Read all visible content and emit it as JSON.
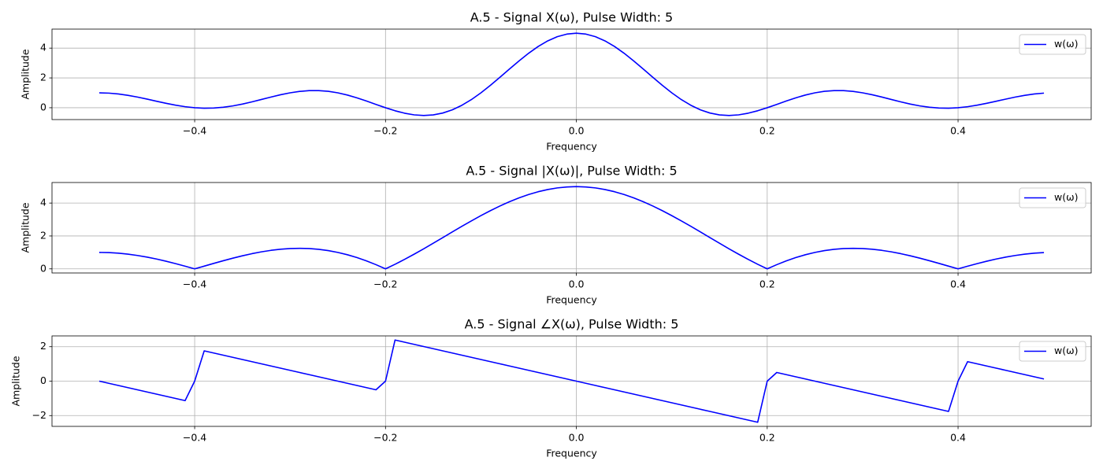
{
  "chart_data": [
    {
      "type": "line",
      "title": "A.5 - Signal X(ω), Pulse Width: 5",
      "xlabel": "Frequency",
      "ylabel": "Amplitude",
      "x": [
        -0.5,
        -0.49,
        -0.48,
        -0.47,
        -0.46,
        -0.45,
        -0.44,
        -0.43,
        -0.42,
        -0.41,
        -0.4,
        -0.39,
        -0.38,
        -0.37,
        -0.36,
        -0.35,
        -0.34,
        -0.33,
        -0.32,
        -0.31,
        -0.3,
        -0.29,
        -0.28,
        -0.27,
        -0.26,
        -0.25,
        -0.24,
        -0.23,
        -0.22,
        -0.21,
        -0.2,
        -0.19,
        -0.18,
        -0.17,
        -0.16,
        -0.15,
        -0.14,
        -0.13,
        -0.12,
        -0.11,
        -0.1,
        -0.09,
        -0.08,
        -0.07,
        -0.06,
        -0.05,
        -0.04,
        -0.03,
        -0.02,
        -0.01,
        0,
        0.01,
        0.02,
        0.03,
        0.04,
        0.05,
        0.06,
        0.07,
        0.08,
        0.09,
        0.1,
        0.11,
        0.12,
        0.13,
        0.14,
        0.15,
        0.16,
        0.17,
        0.18,
        0.19,
        0.2,
        0.21,
        0.22,
        0.23,
        0.24,
        0.25,
        0.26,
        0.27,
        0.28,
        0.29,
        0.3,
        0.31,
        0.32,
        0.33,
        0.34,
        0.35,
        0.36,
        0.37,
        0.38,
        0.39,
        0.4,
        0.41,
        0.42,
        0.43,
        0.44,
        0.45,
        0.46,
        0.47,
        0.48,
        0.49
      ],
      "series": [
        {
          "name": "w(ω)",
          "color": "#0000ff",
          "values": [
            1,
            0.98,
            0.923,
            0.832,
            0.715,
            0.579,
            0.436,
            0.297,
            0.171,
            0.069,
            0,
            -0.031,
            -0.021,
            0.031,
            0.122,
            0.245,
            0.393,
            0.555,
            0.718,
            0.87,
            1,
            1.095,
            1.148,
            1.151,
            1.101,
            1,
            0.852,
            0.665,
            0.451,
            0.224,
            0,
            -0.203,
            -0.368,
            -0.478,
            -0.519,
            -0.481,
            -0.356,
            -0.141,
            0.162,
            0.546,
            1,
            1.507,
            2.049,
            2.604,
            3.147,
            3.657,
            4.11,
            4.485,
            4.766,
            4.941,
            5,
            4.941,
            4.766,
            4.485,
            4.11,
            3.657,
            3.147,
            2.604,
            2.049,
            1.507,
            1,
            0.546,
            0.162,
            -0.141,
            -0.356,
            -0.481,
            -0.519,
            -0.478,
            -0.368,
            -0.203,
            0,
            0.224,
            0.451,
            0.665,
            0.852,
            1,
            1.101,
            1.151,
            1.148,
            1.095,
            1,
            0.87,
            0.718,
            0.555,
            0.393,
            0.245,
            0.122,
            0.031,
            -0.021,
            -0.031,
            0,
            0.069,
            0.171,
            0.297,
            0.436,
            0.579,
            0.715,
            0.832,
            0.923,
            0.98
          ]
        }
      ],
      "xlim": [
        -0.5495,
        0.5395
      ],
      "ylim": [
        -0.795,
        5.276
      ],
      "xticks": [
        {
          "value": -0.4,
          "label": "−0.4"
        },
        {
          "value": -0.2,
          "label": "−0.2"
        },
        {
          "value": 0,
          "label": "0.0"
        },
        {
          "value": 0.2,
          "label": "0.2"
        },
        {
          "value": 0.4,
          "label": "0.4"
        }
      ],
      "yticks": [
        0,
        2,
        4
      ],
      "grid": true,
      "legend": "upper right"
    },
    {
      "type": "line",
      "title": "A.5 - Signal |X(ω)|, Pulse Width: 5",
      "xlabel": "Frequency",
      "ylabel": "Amplitude",
      "x": [
        -0.5,
        -0.49,
        -0.48,
        -0.47,
        -0.46,
        -0.45,
        -0.44,
        -0.43,
        -0.42,
        -0.41,
        -0.4,
        -0.39,
        -0.38,
        -0.37,
        -0.36,
        -0.35,
        -0.34,
        -0.33,
        -0.32,
        -0.31,
        -0.3,
        -0.29,
        -0.28,
        -0.27,
        -0.26,
        -0.25,
        -0.24,
        -0.23,
        -0.22,
        -0.21,
        -0.2,
        -0.19,
        -0.18,
        -0.17,
        -0.16,
        -0.15,
        -0.14,
        -0.13,
        -0.12,
        -0.11,
        -0.1,
        -0.09,
        -0.08,
        -0.07,
        -0.06,
        -0.05,
        -0.04,
        -0.03,
        -0.02,
        -0.01,
        0,
        0.01,
        0.02,
        0.03,
        0.04,
        0.05,
        0.06,
        0.07,
        0.08,
        0.09,
        0.1,
        0.11,
        0.12,
        0.13,
        0.14,
        0.15,
        0.16,
        0.17,
        0.18,
        0.19,
        0.2,
        0.21,
        0.22,
        0.23,
        0.24,
        0.25,
        0.26,
        0.27,
        0.28,
        0.29,
        0.3,
        0.31,
        0.32,
        0.33,
        0.34,
        0.35,
        0.36,
        0.37,
        0.38,
        0.39,
        0.4,
        0.41,
        0.42,
        0.43,
        0.44,
        0.45,
        0.46,
        0.47,
        0.48,
        0.49
      ],
      "series": [
        {
          "name": "w(ω)",
          "color": "#0000ff",
          "values": [
            1,
            0.988,
            0.953,
            0.895,
            0.815,
            0.716,
            0.598,
            0.465,
            0.319,
            0.163,
            0,
            0.166,
            0.332,
            0.495,
            0.65,
            0.794,
            0.923,
            1.035,
            1.126,
            1.194,
            1.236,
            1.25,
            1.234,
            1.188,
            1.11,
            1,
            0.859,
            0.687,
            0.485,
            0.255,
            0,
            0.278,
            0.577,
            0.892,
            1.22,
            1.558,
            1.9,
            2.244,
            2.584,
            2.916,
            3.236,
            3.54,
            3.824,
            4.085,
            4.317,
            4.52,
            4.69,
            4.824,
            4.921,
            4.98,
            5,
            4.98,
            4.921,
            4.824,
            4.69,
            4.52,
            4.317,
            4.085,
            3.824,
            3.54,
            3.236,
            2.916,
            2.584,
            2.244,
            1.9,
            1.558,
            1.22,
            0.892,
            0.577,
            0.278,
            0,
            0.255,
            0.485,
            0.687,
            0.859,
            1,
            1.11,
            1.188,
            1.234,
            1.25,
            1.236,
            1.194,
            1.126,
            1.035,
            0.923,
            0.794,
            0.65,
            0.495,
            0.332,
            0.166,
            0,
            0.163,
            0.319,
            0.465,
            0.598,
            0.716,
            0.815,
            0.895,
            0.953,
            0.988
          ]
        }
      ],
      "xlim": [
        -0.5495,
        0.5395
      ],
      "ylim": [
        -0.25,
        5.25
      ],
      "xticks": [
        {
          "value": -0.4,
          "label": "−0.4"
        },
        {
          "value": -0.2,
          "label": "−0.2"
        },
        {
          "value": 0,
          "label": "0.0"
        },
        {
          "value": 0.2,
          "label": "0.2"
        },
        {
          "value": 0.4,
          "label": "0.4"
        }
      ],
      "yticks": [
        0,
        2,
        4
      ],
      "grid": true,
      "legend": "upper right"
    },
    {
      "type": "line",
      "title": "A.5 - Signal ∠X(ω), Pulse Width: 5",
      "xlabel": "Frequency",
      "ylabel": "Amplitude",
      "x": [
        -0.5,
        -0.49,
        -0.48,
        -0.47,
        -0.46,
        -0.45,
        -0.44,
        -0.43,
        -0.42,
        -0.41,
        -0.4,
        -0.39,
        -0.38,
        -0.37,
        -0.36,
        -0.35,
        -0.34,
        -0.33,
        -0.32,
        -0.31,
        -0.3,
        -0.29,
        -0.28,
        -0.27,
        -0.26,
        -0.25,
        -0.24,
        -0.23,
        -0.22,
        -0.21,
        -0.2,
        -0.19,
        -0.18,
        -0.17,
        -0.16,
        -0.15,
        -0.14,
        -0.13,
        -0.12,
        -0.11,
        -0.1,
        -0.09,
        -0.08,
        -0.07,
        -0.06,
        -0.05,
        -0.04,
        -0.03,
        -0.02,
        -0.01,
        0,
        0.01,
        0.02,
        0.03,
        0.04,
        0.05,
        0.06,
        0.07,
        0.08,
        0.09,
        0.1,
        0.11,
        0.12,
        0.13,
        0.14,
        0.15,
        0.16,
        0.17,
        0.18,
        0.19,
        0.2,
        0.21,
        0.22,
        0.23,
        0.24,
        0.25,
        0.26,
        0.27,
        0.28,
        0.29,
        0.3,
        0.31,
        0.32,
        0.33,
        0.34,
        0.35,
        0.36,
        0.37,
        0.38,
        0.39,
        0.4,
        0.41,
        0.42,
        0.43,
        0.44,
        0.45,
        0.46,
        0.47,
        0.48,
        0.49
      ],
      "series": [
        {
          "name": "w(ω)",
          "color": "#0000ff",
          "values": [
            0,
            -0.126,
            -0.251,
            -0.377,
            -0.503,
            -0.628,
            -0.754,
            -0.88,
            -1.005,
            -1.131,
            0,
            1.759,
            1.634,
            1.508,
            1.382,
            1.257,
            1.131,
            1.005,
            0.88,
            0.754,
            0.628,
            0.503,
            0.377,
            0.251,
            0.126,
            0,
            -0.126,
            -0.251,
            -0.377,
            -0.503,
            0,
            2.388,
            2.262,
            2.136,
            2.011,
            1.885,
            1.759,
            1.634,
            1.508,
            1.382,
            1.257,
            1.131,
            1.005,
            0.88,
            0.754,
            0.628,
            0.503,
            0.377,
            0.251,
            0.126,
            0,
            -0.126,
            -0.251,
            -0.377,
            -0.503,
            -0.628,
            -0.754,
            -0.88,
            -1.005,
            -1.131,
            -1.257,
            -1.382,
            -1.508,
            -1.634,
            -1.759,
            -1.885,
            -2.011,
            -2.136,
            -2.262,
            -2.388,
            0,
            0.503,
            0.377,
            0.251,
            0.126,
            0,
            -0.126,
            -0.251,
            -0.377,
            -0.503,
            -0.628,
            -0.754,
            -0.88,
            -1.005,
            -1.131,
            -1.257,
            -1.382,
            -1.508,
            -1.634,
            -1.759,
            0,
            1.131,
            1.005,
            0.88,
            0.754,
            0.628,
            0.503,
            0.377,
            0.251,
            0.126
          ]
        }
      ],
      "xlim": [
        -0.5495,
        0.5395
      ],
      "ylim": [
        -2.627,
        2.627
      ],
      "xticks": [
        {
          "value": -0.4,
          "label": "−0.4"
        },
        {
          "value": -0.2,
          "label": "−0.2"
        },
        {
          "value": 0,
          "label": "0.0"
        },
        {
          "value": 0.2,
          "label": "0.2"
        },
        {
          "value": 0.4,
          "label": "0.4"
        }
      ],
      "yticks": [
        {
          "value": -2,
          "label": "−2"
        },
        0,
        2
      ],
      "grid": true,
      "legend": "upper right"
    }
  ]
}
